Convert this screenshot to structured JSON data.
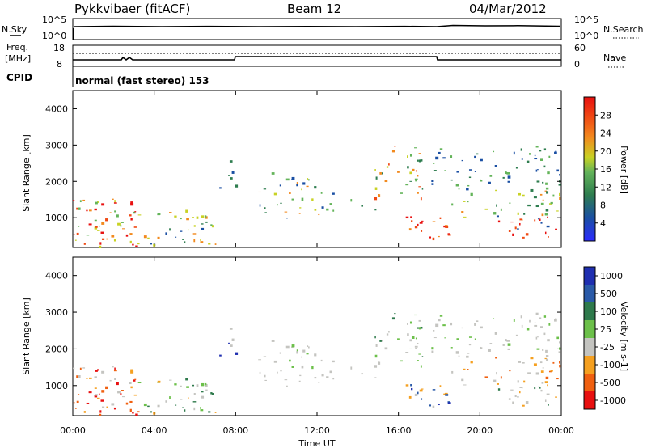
{
  "header": {
    "station": "Pykkvibaer (fitACF)",
    "beam": "Beam 12",
    "date": "04/Mar/2012"
  },
  "noise_panel": {
    "left_label": "N.Sky",
    "right_label": "N.Search",
    "left_ticks": [
      "10^5",
      "10^0"
    ],
    "right_ticks": [
      "10^5",
      "10^0"
    ]
  },
  "freq_panel": {
    "left_label": "Freq.",
    "left_unit": "[MHz]",
    "right_label": "Nave",
    "left_ticks": [
      "18",
      "8"
    ],
    "right_ticks": [
      "60",
      "0"
    ]
  },
  "cpid_panel": {
    "label": "CPID",
    "text": "normal (fast stereo) 153"
  },
  "chart_data": [
    {
      "type": "heatmap",
      "title": "",
      "ylabel": "Slant Range [km]",
      "xlabel": "",
      "xlim": [
        "00:00",
        "24:00"
      ],
      "ylim": [
        180,
        4500
      ],
      "yticks": [
        "1000",
        "2000",
        "3000",
        "4000"
      ],
      "colorbar": {
        "label": "Power [dB]",
        "ticks": [
          "4",
          "8",
          "12",
          "16",
          "20",
          "24",
          "28"
        ],
        "range": [
          0,
          32
        ],
        "colors": [
          "#2b2bff",
          "#1a4fa3",
          "#2e7d4f",
          "#64b45a",
          "#c8d224",
          "#f28a1e",
          "#f04a14",
          "#e81010"
        ]
      }
    },
    {
      "type": "heatmap",
      "title": "",
      "ylabel": "Slant Range [km]",
      "xlabel": "Time UT",
      "xlim": [
        "00:00",
        "24:00"
      ],
      "ylim": [
        180,
        4500
      ],
      "yticks": [
        "1000",
        "2000",
        "3000",
        "4000"
      ],
      "xticks": [
        "00:00",
        "04:00",
        "08:00",
        "12:00",
        "16:00",
        "20:00",
        "00:00"
      ],
      "colorbar": {
        "label": "Velocity [m s-1]",
        "ticks": [
          "1000",
          "500",
          "100",
          "25",
          "-25",
          "-100",
          "-500",
          "-1000"
        ],
        "colors": [
          "#1f2fb0",
          "#2a5aa8",
          "#2f7a4c",
          "#6cc04a",
          "#c4c4c0",
          "#f5a020",
          "#f06010",
          "#e81010"
        ]
      }
    }
  ]
}
